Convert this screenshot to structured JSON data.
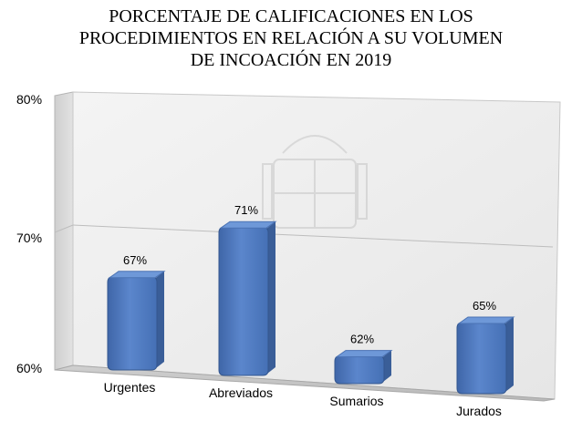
{
  "chart_data": {
    "type": "bar",
    "title_lines": [
      "PORCENTAJE DE CALIFICACIONES EN LOS",
      "PROCEDIMIENTOS EN RELACIÓN A SU VOLUMEN",
      "DE INCOACIÓN EN 2019"
    ],
    "categories": [
      "Urgentes",
      "Abreviados",
      "Sumarios",
      "Jurados"
    ],
    "values": [
      67,
      71,
      62,
      65
    ],
    "data_labels": [
      "67%",
      "71%",
      "62%",
      "65%"
    ],
    "y_ticks": [
      {
        "value": 60,
        "label": "60%"
      },
      {
        "value": 70,
        "label": "70%"
      },
      {
        "value": 80,
        "label": "80%"
      }
    ],
    "ylim": [
      60,
      80
    ],
    "grid": true,
    "legend": "none",
    "bar_color": "#4f7ac0",
    "bar_top_color": "#6e98d8",
    "bar_side_color": "#3a5e98"
  }
}
